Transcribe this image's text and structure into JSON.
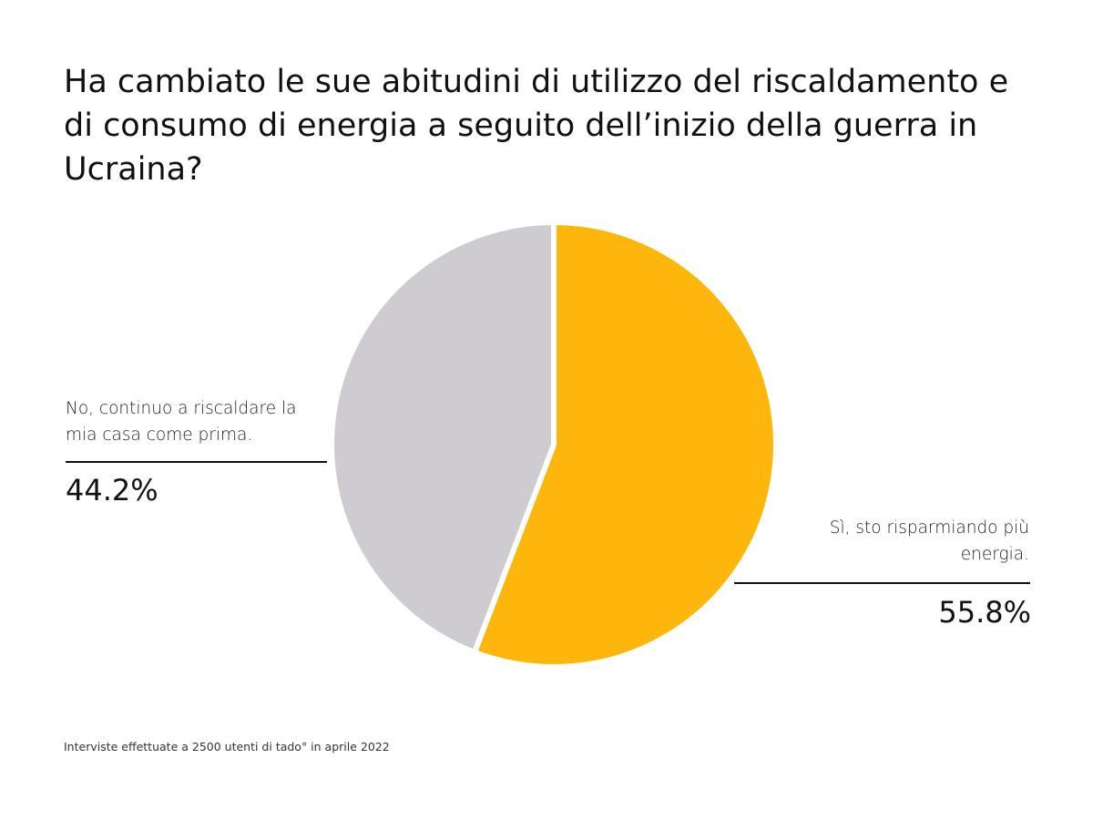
{
  "title": "Ha cambiato le sue abitudini di utilizzo del riscaldamento e di consumo di energia a seguito dell’inizio della guerra in Ucraina?",
  "chart_data": {
    "type": "pie",
    "title": "Ha cambiato le sue abitudini di utilizzo del riscaldamento e di consumo di energia a seguito dell’inizio della guerra in Ucraina?",
    "slices": [
      {
        "label": "Sì, sto risparmiando più energia.",
        "value": 55.8,
        "display": "55.8%",
        "color": "#FDB70C"
      },
      {
        "label": "No, continuo a riscaldare la mia casa come prima.",
        "value": 44.2,
        "display": "44.2%",
        "color": "#CECCD0"
      }
    ],
    "start_angle": "12 o'clock",
    "direction": "clockwise"
  },
  "labels": {
    "left": {
      "text": "No, continuo a riscaldare la mia casa come prima.",
      "value": "44.2%"
    },
    "right": {
      "text": "Sì, sto risparmiando più energia.",
      "value": "55.8%"
    }
  },
  "footnote": "Interviste effettuate a 2500 utenti di tado° in aprile 2022"
}
